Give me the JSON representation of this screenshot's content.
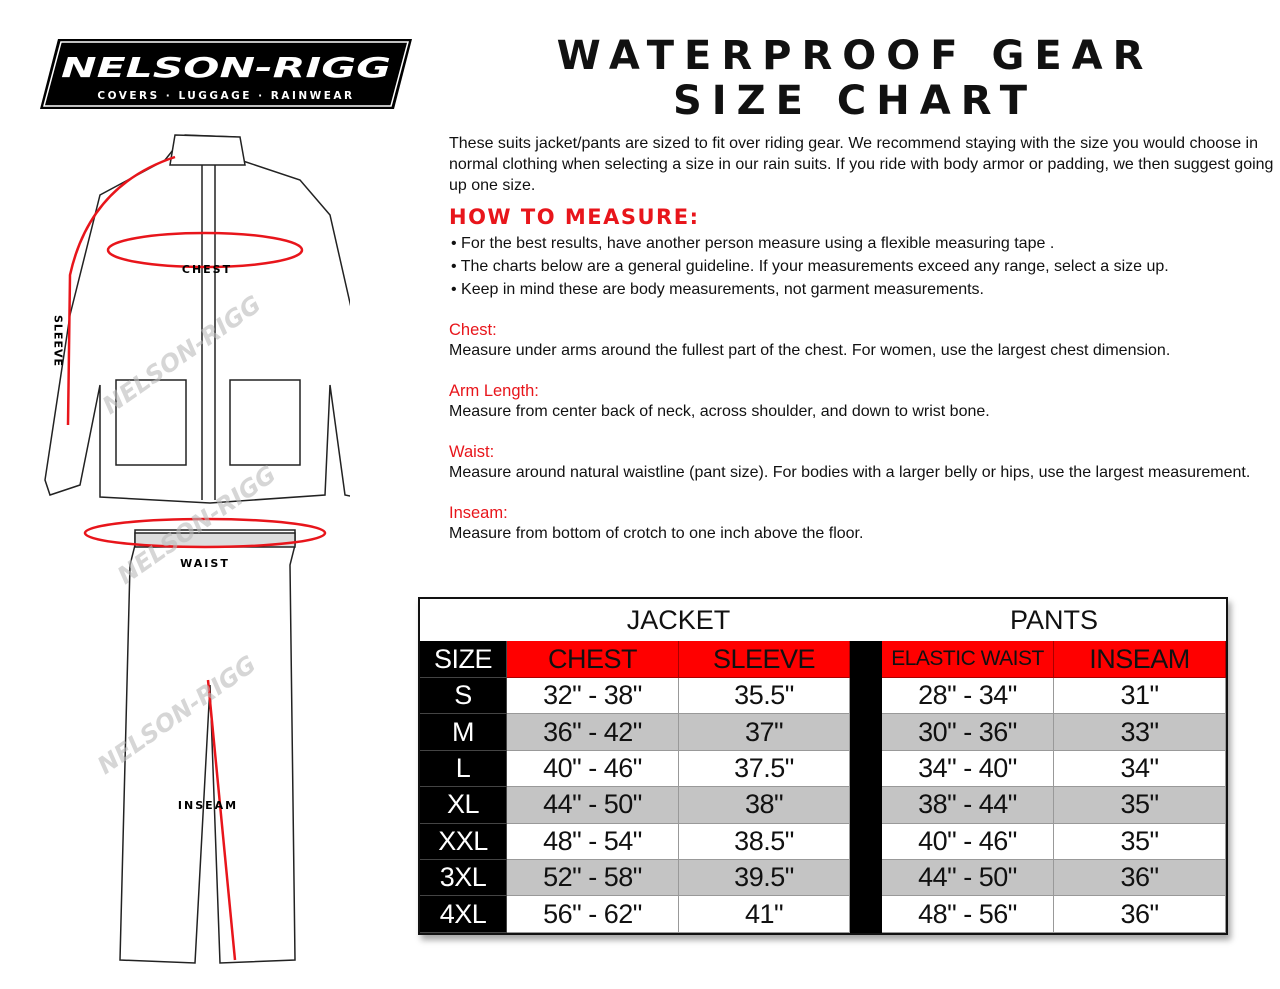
{
  "logo": {
    "brand": "NELSON-RIGG",
    "tagline": "COVERS · LUGGAGE · RAINWEAR"
  },
  "title": {
    "line1": "WATERPROOF GEAR",
    "line2": "SIZE CHART"
  },
  "intro": "These suits jacket/pants are sized to fit over riding gear. We recommend staying with the size you would choose in normal clothing when selecting a size in our rain suits.  If you ride with body armor or padding, we then suggest going up one size.",
  "how_to": {
    "heading": "HOW TO MEASURE:",
    "bullets": [
      "• For the best results, have another person measure using a flexible measuring tape .",
      "• The charts below are a general guideline. If your measurements exceed any range, select a size up.",
      "• Keep in mind these are body measurements, not garment measurements."
    ]
  },
  "measures": [
    {
      "label": "Chest:",
      "text": "Measure under arms around the fullest part of the chest. For women, use the largest chest dimension."
    },
    {
      "label": "Arm Length:",
      "text": "Measure from center back of neck, across shoulder, and down to wrist bone."
    },
    {
      "label": "Waist:",
      "text": "Measure around natural waistline (pant size). For bodies with a larger belly or hips, use the largest measurement."
    },
    {
      "label": "Inseam:",
      "text": "Measure from bottom of crotch to one inch above the floor."
    }
  ],
  "illustration": {
    "chest": "CHEST",
    "sleeve": "SLEEVE",
    "waist": "WAIST",
    "inseam": "INSEAM",
    "watermark": "NELSON-RIGG"
  },
  "table": {
    "groups": [
      "JACKET",
      "PANTS"
    ],
    "headers": [
      "SIZE",
      "CHEST",
      "SLEEVE",
      "ELASTIC WAIST",
      "INSEAM"
    ],
    "rows": [
      [
        "S",
        "32\" - 38\"",
        "35.5\"",
        "28\" - 34\"",
        "31\""
      ],
      [
        "M",
        "36\" - 42\"",
        "37\"",
        "30\" - 36\"",
        "33\""
      ],
      [
        "L",
        "40\" - 46\"",
        "37.5\"",
        "34\" - 40\"",
        "34\""
      ],
      [
        "XL",
        "44\" - 50\"",
        "38\"",
        "38\" - 44\"",
        "35\""
      ],
      [
        "XXL",
        "48\" - 54\"",
        "38.5\"",
        "40\" - 46\"",
        "35\""
      ],
      [
        "3XL",
        "52\" - 58\"",
        "39.5\"",
        "44\" - 50\"",
        "36\""
      ],
      [
        "4XL",
        "56\" - 62\"",
        "41\"",
        "48\" - 56\"",
        "36\""
      ]
    ]
  },
  "colors": {
    "accent": "#e8151b",
    "header_red": "#ff0000",
    "stripe": "#c4c4c4"
  }
}
